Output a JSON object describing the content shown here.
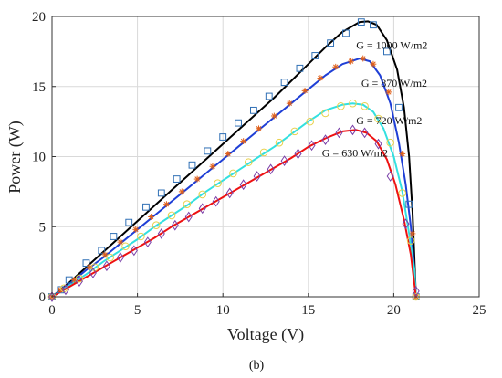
{
  "panel_label": "(b)",
  "chart_data": {
    "type": "line",
    "title": "",
    "xlabel": "Voltage (V)",
    "ylabel": "Power (W)",
    "xlim": [
      0,
      25
    ],
    "ylim": [
      0,
      20
    ],
    "xticks": [
      0,
      5,
      10,
      15,
      20,
      25
    ],
    "yticks": [
      0,
      5,
      10,
      15,
      20
    ],
    "grid": true,
    "series": [
      {
        "label": "G = 1000 W/m2",
        "label_anchor": [
          17.8,
          17.7
        ],
        "line_color": "#000000",
        "marker": "square",
        "marker_color": "#2f6fb5",
        "line": [
          [
            0,
            0
          ],
          [
            1,
            1.0
          ],
          [
            2,
            2.1
          ],
          [
            3,
            3.2
          ],
          [
            4,
            4.3
          ],
          [
            5,
            5.4
          ],
          [
            6,
            6.5
          ],
          [
            7,
            7.6
          ],
          [
            8,
            8.7
          ],
          [
            9,
            9.8
          ],
          [
            10,
            10.9
          ],
          [
            11,
            12.0
          ],
          [
            12,
            13.1
          ],
          [
            13,
            14.2
          ],
          [
            14,
            15.4
          ],
          [
            15,
            16.6
          ],
          [
            16,
            17.8
          ],
          [
            17,
            18.9
          ],
          [
            18,
            19.6
          ],
          [
            18.5,
            19.65
          ],
          [
            19,
            19.4
          ],
          [
            19.6,
            18.3
          ],
          [
            20.2,
            16.2
          ],
          [
            20.6,
            13.5
          ],
          [
            20.9,
            10.0
          ],
          [
            21.1,
            6.0
          ],
          [
            21.2,
            3.0
          ],
          [
            21.3,
            0
          ]
        ],
        "markers": [
          [
            0,
            0
          ],
          [
            0.5,
            0.5
          ],
          [
            1,
            1.2
          ],
          [
            2,
            2.4
          ],
          [
            2.9,
            3.3
          ],
          [
            3.6,
            4.3
          ],
          [
            4.5,
            5.3
          ],
          [
            5.5,
            6.4
          ],
          [
            6.4,
            7.4
          ],
          [
            7.3,
            8.4
          ],
          [
            8.2,
            9.4
          ],
          [
            9.1,
            10.4
          ],
          [
            10,
            11.4
          ],
          [
            10.9,
            12.4
          ],
          [
            11.8,
            13.3
          ],
          [
            12.7,
            14.3
          ],
          [
            13.6,
            15.3
          ],
          [
            14.5,
            16.3
          ],
          [
            15.4,
            17.2
          ],
          [
            16.3,
            18.1
          ],
          [
            17.2,
            18.8
          ],
          [
            18.1,
            19.6
          ],
          [
            18.8,
            19.4
          ],
          [
            19.6,
            17.5
          ],
          [
            20.3,
            13.5
          ],
          [
            20.9,
            6.6
          ],
          [
            21.3,
            0
          ]
        ]
      },
      {
        "label": "G = 870 W/m2",
        "label_anchor": [
          18.1,
          15.0
        ],
        "line_color": "#1f3fd6",
        "marker": "asterisk",
        "marker_color": "#e0601a",
        "line": [
          [
            0,
            0
          ],
          [
            1,
            0.9
          ],
          [
            2,
            1.9
          ],
          [
            3,
            2.8
          ],
          [
            4,
            3.8
          ],
          [
            5,
            4.8
          ],
          [
            6,
            5.8
          ],
          [
            7,
            6.8
          ],
          [
            8,
            7.8
          ],
          [
            9,
            8.8
          ],
          [
            10,
            9.8
          ],
          [
            11,
            10.8
          ],
          [
            12,
            11.8
          ],
          [
            13,
            12.8
          ],
          [
            14,
            13.8
          ],
          [
            15,
            14.8
          ],
          [
            16,
            15.8
          ],
          [
            17,
            16.6
          ],
          [
            18,
            17.0
          ],
          [
            18.6,
            16.8
          ],
          [
            19.2,
            15.8
          ],
          [
            19.8,
            13.8
          ],
          [
            20.3,
            11.0
          ],
          [
            20.7,
            8.0
          ],
          [
            21.0,
            5.0
          ],
          [
            21.2,
            2.0
          ],
          [
            21.3,
            0
          ]
        ],
        "markers": [
          [
            0,
            0
          ],
          [
            0.5,
            0.5
          ],
          [
            1.3,
            1.2
          ],
          [
            2.2,
            2.1
          ],
          [
            3.1,
            3.0
          ],
          [
            4,
            3.9
          ],
          [
            4.9,
            4.8
          ],
          [
            5.8,
            5.7
          ],
          [
            6.7,
            6.6
          ],
          [
            7.6,
            7.5
          ],
          [
            8.5,
            8.4
          ],
          [
            9.4,
            9.3
          ],
          [
            10.3,
            10.2
          ],
          [
            11.2,
            11.1
          ],
          [
            12.1,
            12.0
          ],
          [
            13,
            12.9
          ],
          [
            13.9,
            13.8
          ],
          [
            14.8,
            14.7
          ],
          [
            15.7,
            15.6
          ],
          [
            16.6,
            16.4
          ],
          [
            17.5,
            16.8
          ],
          [
            18.2,
            17.0
          ],
          [
            18.8,
            16.6
          ],
          [
            19.7,
            14.6
          ],
          [
            20.5,
            10.2
          ],
          [
            21.1,
            4.5
          ],
          [
            21.3,
            0
          ]
        ]
      },
      {
        "label": "G = 720 W/m2",
        "label_anchor": [
          17.8,
          12.3
        ],
        "line_color": "#33e0e0",
        "marker": "circle",
        "marker_color": "#e8d04a",
        "line": [
          [
            0,
            0
          ],
          [
            1,
            0.8
          ],
          [
            2,
            1.6
          ],
          [
            3,
            2.5
          ],
          [
            4,
            3.3
          ],
          [
            5,
            4.1
          ],
          [
            6,
            5.0
          ],
          [
            7,
            5.8
          ],
          [
            8,
            6.6
          ],
          [
            9,
            7.5
          ],
          [
            10,
            8.3
          ],
          [
            11,
            9.1
          ],
          [
            12,
            9.9
          ],
          [
            13,
            10.7
          ],
          [
            14,
            11.6
          ],
          [
            15,
            12.5
          ],
          [
            16,
            13.3
          ],
          [
            17,
            13.7
          ],
          [
            17.6,
            13.8
          ],
          [
            18.2,
            13.7
          ],
          [
            18.8,
            13.2
          ],
          [
            19.4,
            12.0
          ],
          [
            20.0,
            10.0
          ],
          [
            20.5,
            7.5
          ],
          [
            20.9,
            4.5
          ],
          [
            21.2,
            2.0
          ],
          [
            21.3,
            0
          ]
        ],
        "markers": [
          [
            0,
            0
          ],
          [
            0.7,
            0.6
          ],
          [
            1.6,
            1.3
          ],
          [
            2.5,
            2.1
          ],
          [
            3.4,
            2.8
          ],
          [
            4.3,
            3.6
          ],
          [
            5.2,
            4.3
          ],
          [
            6.1,
            5.1
          ],
          [
            7,
            5.8
          ],
          [
            7.9,
            6.6
          ],
          [
            8.8,
            7.3
          ],
          [
            9.7,
            8.1
          ],
          [
            10.6,
            8.8
          ],
          [
            11.5,
            9.6
          ],
          [
            12.4,
            10.3
          ],
          [
            13.3,
            11.0
          ],
          [
            14.2,
            11.8
          ],
          [
            15.1,
            12.5
          ],
          [
            16,
            13.1
          ],
          [
            16.9,
            13.6
          ],
          [
            17.6,
            13.8
          ],
          [
            18.3,
            13.6
          ],
          [
            19.1,
            12.7
          ],
          [
            19.8,
            11.0
          ],
          [
            20.5,
            7.4
          ],
          [
            21,
            4.0
          ],
          [
            21.3,
            0
          ]
        ]
      },
      {
        "label": "G = 630 W/m2",
        "label_anchor": [
          15.8,
          10.0
        ],
        "line_color": "#ee1111",
        "marker": "diamond",
        "marker_color": "#7a3fa8",
        "line": [
          [
            0,
            0
          ],
          [
            1,
            0.7
          ],
          [
            2,
            1.4
          ],
          [
            3,
            2.1
          ],
          [
            4,
            2.8
          ],
          [
            5,
            3.5
          ],
          [
            6,
            4.2
          ],
          [
            7,
            5.0
          ],
          [
            8,
            5.7
          ],
          [
            9,
            6.4
          ],
          [
            10,
            7.1
          ],
          [
            11,
            7.8
          ],
          [
            12,
            8.5
          ],
          [
            13,
            9.2
          ],
          [
            14,
            9.9
          ],
          [
            15,
            10.7
          ],
          [
            16,
            11.3
          ],
          [
            17,
            11.8
          ],
          [
            17.8,
            11.9
          ],
          [
            18.4,
            11.7
          ],
          [
            19.0,
            11.1
          ],
          [
            19.6,
            9.8
          ],
          [
            20.1,
            8.0
          ],
          [
            20.6,
            5.5
          ],
          [
            21.0,
            3.0
          ],
          [
            21.3,
            0
          ]
        ],
        "markers": [
          [
            0,
            0
          ],
          [
            0.8,
            0.5
          ],
          [
            1.6,
            1.1
          ],
          [
            2.4,
            1.7
          ],
          [
            3.2,
            2.2
          ],
          [
            4,
            2.8
          ],
          [
            4.8,
            3.3
          ],
          [
            5.6,
            3.9
          ],
          [
            6.4,
            4.5
          ],
          [
            7.2,
            5.1
          ],
          [
            8,
            5.7
          ],
          [
            8.8,
            6.3
          ],
          [
            9.6,
            6.8
          ],
          [
            10.4,
            7.4
          ],
          [
            11.2,
            8.0
          ],
          [
            12,
            8.6
          ],
          [
            12.8,
            9.1
          ],
          [
            13.6,
            9.7
          ],
          [
            14.4,
            10.2
          ],
          [
            15.2,
            10.8
          ],
          [
            16,
            11.2
          ],
          [
            16.8,
            11.7
          ],
          [
            17.6,
            11.9
          ],
          [
            18.3,
            11.7
          ],
          [
            19.1,
            10.9
          ],
          [
            19.8,
            8.6
          ],
          [
            20.7,
            5.2
          ],
          [
            21.3,
            0.4
          ]
        ]
      }
    ]
  }
}
